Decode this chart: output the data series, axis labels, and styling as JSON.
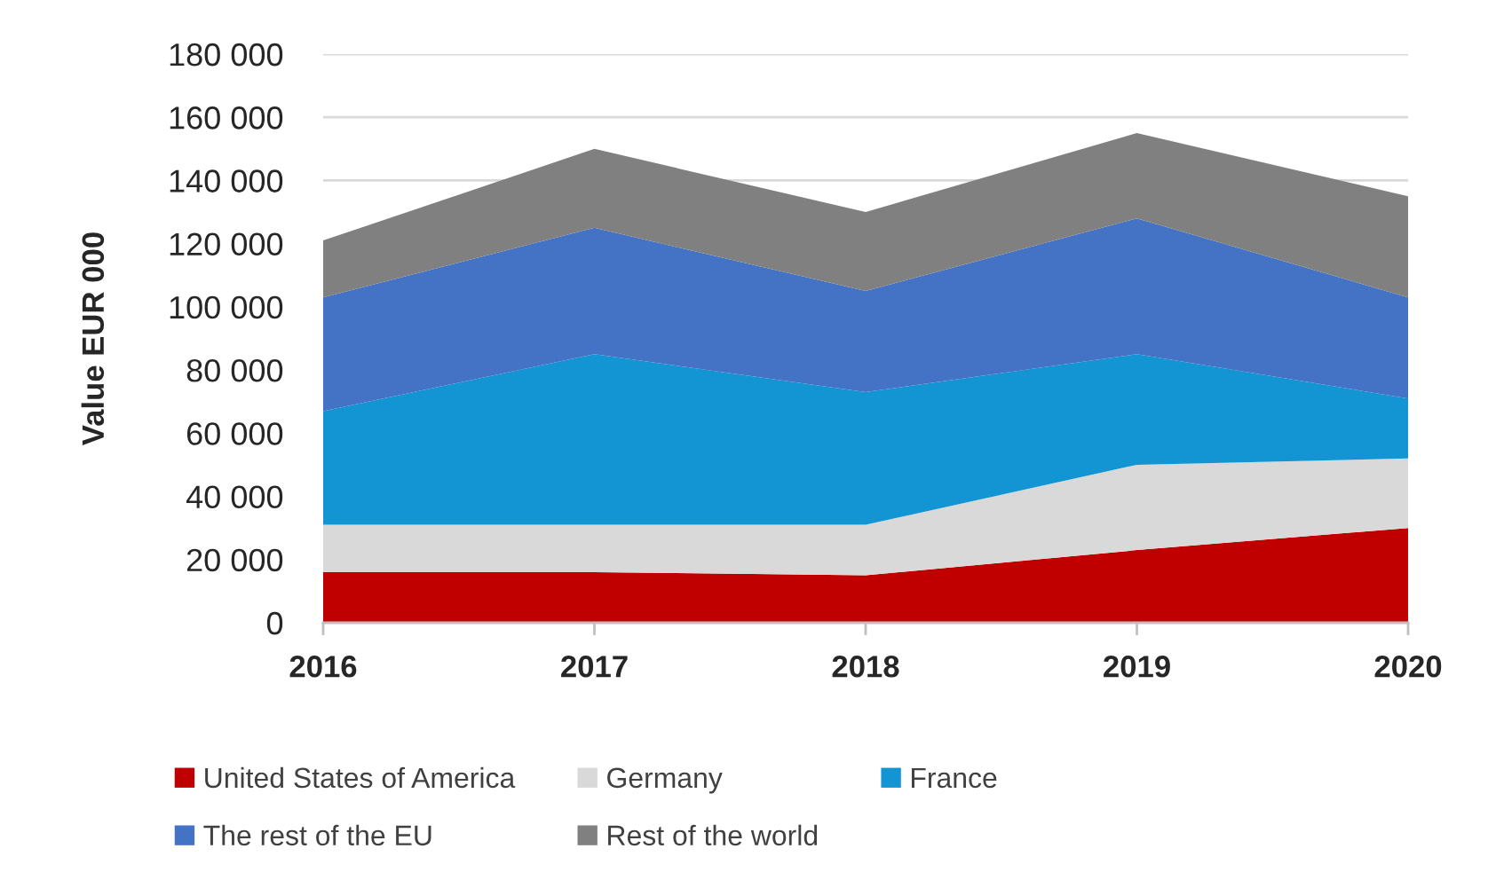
{
  "chart_data": {
    "type": "area",
    "stacked": true,
    "categories": [
      "2016",
      "2017",
      "2018",
      "2019",
      "2020"
    ],
    "ylabel": "Value EUR 000",
    "series": [
      {
        "name": "United States of America",
        "color": "#c00000",
        "values": [
          16000,
          16000,
          15000,
          23000,
          30000
        ]
      },
      {
        "name": "Germany",
        "color": "#d9d9d9",
        "values": [
          15000,
          15000,
          16000,
          27000,
          22000
        ]
      },
      {
        "name": "France",
        "color": "#1394d3",
        "values": [
          36000,
          54000,
          42000,
          35000,
          19000
        ]
      },
      {
        "name": "The rest of the EU",
        "color": "#4472c4",
        "values": [
          36000,
          40000,
          32000,
          43000,
          32000
        ]
      },
      {
        "name": "Rest of the world",
        "color": "#808080",
        "values": [
          18000,
          25000,
          25000,
          27000,
          32000
        ]
      }
    ],
    "ylim": [
      0,
      180000
    ],
    "yticks": [
      0,
      {
        "value": 20000,
        "label": "20 000"
      },
      {
        "value": 40000,
        "label": "40 000"
      },
      {
        "value": 60000,
        "label": "60 000"
      },
      {
        "value": 80000,
        "label": "80 000"
      },
      {
        "value": 100000,
        "label": "100 000"
      },
      {
        "value": 120000,
        "label": "120 000"
      },
      {
        "value": 140000,
        "label": "140 000"
      },
      {
        "value": 160000,
        "label": "160 000"
      },
      {
        "value": 180000,
        "label": "180 000"
      }
    ],
    "grid": "y",
    "legend": "bottom"
  }
}
